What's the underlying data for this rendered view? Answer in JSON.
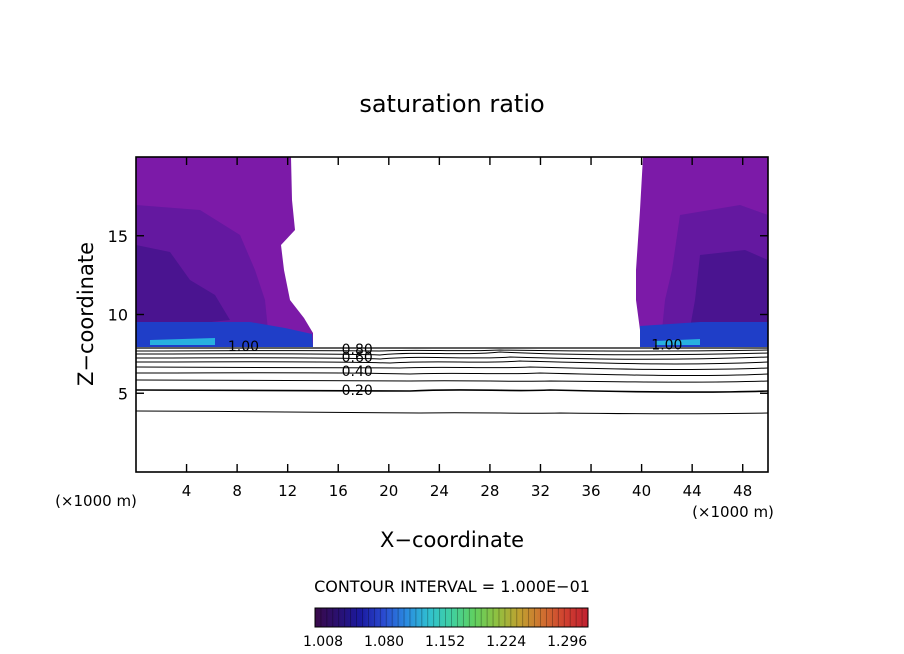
{
  "chart_data": {
    "type": "contour",
    "title": "saturation ratio",
    "xlabel": "X−coordinate",
    "ylabel": "Z−coordinate",
    "x_unit_label_left": "(×1000 m)",
    "x_unit_label_right": "(×1000 m)",
    "xlim": [
      0,
      50
    ],
    "ylim": [
      0,
      20
    ],
    "x_ticks": [
      "4",
      "8",
      "12",
      "16",
      "20",
      "24",
      "28",
      "32",
      "36",
      "40",
      "44",
      "48"
    ],
    "y_ticks": [
      "5",
      "10",
      "15"
    ],
    "contour_interval_text": "CONTOUR INTERVAL = 1.000E−01",
    "contour_labels": [
      {
        "text": "1.00",
        "x": 8.5,
        "z": 8.0
      },
      {
        "text": "0.80",
        "x": 17.5,
        "z": 7.8
      },
      {
        "text": "0.60",
        "x": 17.5,
        "z": 7.3
      },
      {
        "text": "0.40",
        "x": 17.5,
        "z": 6.4
      },
      {
        "text": "0.20",
        "x": 17.5,
        "z": 5.2
      },
      {
        "text": "1.00",
        "x": 42.0,
        "z": 8.1
      }
    ],
    "contour_levels": [
      0.1,
      0.2,
      0.3,
      0.4,
      0.5,
      0.6,
      0.7,
      0.8,
      0.9,
      1.0
    ],
    "colorbar": {
      "ticks": [
        "1.008",
        "1.080",
        "1.152",
        "1.224",
        "1.296"
      ],
      "min": 1.008,
      "max": 1.33,
      "colors": [
        "#3a0a4a",
        "#2a1070",
        "#1a1aa0",
        "#2a4ad0",
        "#2a8ae0",
        "#30c0d0",
        "#40d0a0",
        "#60d060",
        "#90c040",
        "#c0a030",
        "#d07030",
        "#d04030",
        "#c02030"
      ]
    }
  }
}
